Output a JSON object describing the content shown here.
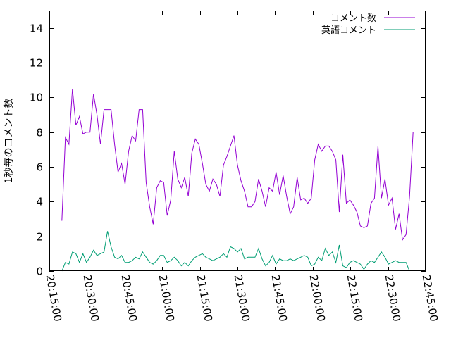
{
  "chart_data": {
    "type": "line",
    "title": "",
    "xlabel": "",
    "ylabel": "1秒毎のコメント数",
    "xlim": [
      "20:15:00",
      "22:45:00"
    ],
    "ylim": [
      0,
      15
    ],
    "yticks": [
      0,
      2,
      4,
      6,
      8,
      10,
      12,
      14
    ],
    "xticks": [
      "20:15:00",
      "20:30:00",
      "20:45:00",
      "21:00:00",
      "21:15:00",
      "21:30:00",
      "21:45:00",
      "22:00:00",
      "22:15:00",
      "22:30:00",
      "22:45:00"
    ],
    "legend_position": "top-right",
    "grid": false,
    "series": [
      {
        "name": "コメント数",
        "color": "#9400d3",
        "points": [
          [
            "20:20:00",
            2.9
          ],
          [
            "20:21:24",
            7.7
          ],
          [
            "20:22:48",
            7.3
          ],
          [
            "20:24:12",
            10.5
          ],
          [
            "20:25:36",
            8.4
          ],
          [
            "20:27:00",
            8.9
          ],
          [
            "20:28:24",
            7.9
          ],
          [
            "20:29:48",
            8.0
          ],
          [
            "20:31:12",
            8.0
          ],
          [
            "20:32:36",
            10.2
          ],
          [
            "20:34:00",
            9.0
          ],
          [
            "20:35:24",
            7.3
          ],
          [
            "20:36:48",
            9.3
          ],
          [
            "20:38:12",
            9.3
          ],
          [
            "20:39:36",
            9.3
          ],
          [
            "20:41:00",
            7.3
          ],
          [
            "20:42:24",
            5.7
          ],
          [
            "20:43:48",
            6.2
          ],
          [
            "20:45:12",
            5.0
          ],
          [
            "20:46:36",
            6.9
          ],
          [
            "20:48:00",
            7.8
          ],
          [
            "20:49:24",
            7.5
          ],
          [
            "20:50:48",
            9.3
          ],
          [
            "20:52:12",
            9.3
          ],
          [
            "20:53:36",
            5.1
          ],
          [
            "20:55:00",
            3.7
          ],
          [
            "20:56:24",
            2.7
          ],
          [
            "20:57:48",
            4.8
          ],
          [
            "20:59:12",
            5.2
          ],
          [
            "21:00:36",
            5.1
          ],
          [
            "21:02:00",
            3.2
          ],
          [
            "21:03:24",
            4.1
          ],
          [
            "21:04:48",
            6.9
          ],
          [
            "21:06:12",
            5.3
          ],
          [
            "21:07:36",
            4.8
          ],
          [
            "21:09:00",
            5.4
          ],
          [
            "21:10:24",
            4.3
          ],
          [
            "21:11:48",
            6.8
          ],
          [
            "21:13:12",
            7.6
          ],
          [
            "21:14:36",
            7.3
          ],
          [
            "21:16:00",
            6.2
          ],
          [
            "21:17:24",
            5.0
          ],
          [
            "21:18:48",
            4.6
          ],
          [
            "21:20:12",
            5.3
          ],
          [
            "21:21:36",
            5.0
          ],
          [
            "21:23:00",
            4.3
          ],
          [
            "21:24:24",
            6.1
          ],
          [
            "21:25:48",
            6.6
          ],
          [
            "21:27:12",
            7.2
          ],
          [
            "21:28:36",
            7.8
          ],
          [
            "21:30:00",
            6.1
          ],
          [
            "21:31:24",
            5.2
          ],
          [
            "21:32:48",
            4.6
          ],
          [
            "21:34:12",
            3.7
          ],
          [
            "21:35:36",
            3.7
          ],
          [
            "21:37:00",
            4.0
          ],
          [
            "21:38:24",
            5.3
          ],
          [
            "21:39:48",
            4.6
          ],
          [
            "21:41:12",
            3.7
          ],
          [
            "21:42:36",
            4.8
          ],
          [
            "21:44:00",
            4.6
          ],
          [
            "21:45:24",
            5.7
          ],
          [
            "21:46:48",
            4.4
          ],
          [
            "21:48:12",
            5.5
          ],
          [
            "21:49:36",
            4.3
          ],
          [
            "21:51:00",
            3.3
          ],
          [
            "21:52:24",
            3.7
          ],
          [
            "21:53:48",
            5.4
          ],
          [
            "21:55:12",
            4.1
          ],
          [
            "21:56:36",
            4.2
          ],
          [
            "21:58:00",
            3.9
          ],
          [
            "21:59:24",
            4.2
          ],
          [
            "22:00:48",
            6.4
          ],
          [
            "22:02:12",
            7.3
          ],
          [
            "22:03:36",
            6.9
          ],
          [
            "22:05:00",
            7.2
          ],
          [
            "22:06:24",
            7.2
          ],
          [
            "22:07:48",
            6.9
          ],
          [
            "22:09:12",
            6.4
          ],
          [
            "22:10:36",
            3.4
          ],
          [
            "22:12:00",
            6.7
          ],
          [
            "22:13:24",
            3.9
          ],
          [
            "22:14:48",
            4.1
          ],
          [
            "22:16:12",
            3.8
          ],
          [
            "22:17:36",
            3.4
          ],
          [
            "22:19:00",
            2.6
          ],
          [
            "22:20:24",
            2.5
          ],
          [
            "22:21:48",
            2.6
          ],
          [
            "22:23:12",
            3.9
          ],
          [
            "22:24:36",
            4.2
          ],
          [
            "22:26:00",
            7.2
          ],
          [
            "22:27:24",
            4.2
          ],
          [
            "22:28:48",
            5.3
          ],
          [
            "22:30:12",
            3.8
          ],
          [
            "22:31:36",
            4.2
          ],
          [
            "22:33:00",
            2.4
          ],
          [
            "22:34:24",
            3.3
          ],
          [
            "22:35:48",
            1.8
          ],
          [
            "22:37:12",
            2.1
          ],
          [
            "22:38:36",
            4.3
          ],
          [
            "22:40:00",
            8.0
          ]
        ]
      },
      {
        "name": "英語コメント",
        "color": "#009e73",
        "points": [
          [
            "20:20:00",
            0.0
          ],
          [
            "20:21:24",
            0.5
          ],
          [
            "20:22:48",
            0.4
          ],
          [
            "20:24:12",
            1.1
          ],
          [
            "20:25:36",
            1.0
          ],
          [
            "20:27:00",
            0.5
          ],
          [
            "20:28:24",
            1.0
          ],
          [
            "20:29:48",
            0.5
          ],
          [
            "20:31:12",
            0.8
          ],
          [
            "20:32:36",
            1.2
          ],
          [
            "20:34:00",
            0.9
          ],
          [
            "20:35:24",
            1.0
          ],
          [
            "20:36:48",
            1.1
          ],
          [
            "20:38:12",
            2.3
          ],
          [
            "20:39:36",
            1.4
          ],
          [
            "20:41:00",
            0.8
          ],
          [
            "20:42:24",
            0.7
          ],
          [
            "20:43:48",
            0.9
          ],
          [
            "20:45:12",
            0.5
          ],
          [
            "20:46:36",
            0.5
          ],
          [
            "20:48:00",
            0.6
          ],
          [
            "20:49:24",
            0.8
          ],
          [
            "20:50:48",
            0.7
          ],
          [
            "20:52:12",
            1.1
          ],
          [
            "20:53:36",
            0.8
          ],
          [
            "20:55:00",
            0.5
          ],
          [
            "20:56:24",
            0.4
          ],
          [
            "20:57:48",
            0.6
          ],
          [
            "20:59:12",
            0.9
          ],
          [
            "21:00:36",
            0.9
          ],
          [
            "21:02:00",
            0.5
          ],
          [
            "21:03:24",
            0.6
          ],
          [
            "21:04:48",
            0.8
          ],
          [
            "21:06:12",
            0.6
          ],
          [
            "21:07:36",
            0.3
          ],
          [
            "21:09:00",
            0.5
          ],
          [
            "21:10:24",
            0.3
          ],
          [
            "21:11:48",
            0.6
          ],
          [
            "21:13:12",
            0.8
          ],
          [
            "21:14:36",
            0.9
          ],
          [
            "21:16:00",
            1.0
          ],
          [
            "21:17:24",
            0.8
          ],
          [
            "21:18:48",
            0.7
          ],
          [
            "21:20:12",
            0.6
          ],
          [
            "21:21:36",
            0.7
          ],
          [
            "21:23:00",
            0.8
          ],
          [
            "21:24:24",
            1.0
          ],
          [
            "21:25:48",
            0.8
          ],
          [
            "21:27:12",
            1.4
          ],
          [
            "21:28:36",
            1.3
          ],
          [
            "21:30:00",
            1.1
          ],
          [
            "21:31:24",
            1.3
          ],
          [
            "21:32:48",
            0.7
          ],
          [
            "21:34:12",
            0.8
          ],
          [
            "21:35:36",
            0.8
          ],
          [
            "21:37:00",
            0.8
          ],
          [
            "21:38:24",
            1.3
          ],
          [
            "21:39:48",
            0.7
          ],
          [
            "21:41:12",
            0.3
          ],
          [
            "21:42:36",
            0.5
          ],
          [
            "21:44:00",
            0.9
          ],
          [
            "21:45:24",
            0.4
          ],
          [
            "21:46:48",
            0.7
          ],
          [
            "21:48:12",
            0.6
          ],
          [
            "21:49:36",
            0.6
          ],
          [
            "21:51:00",
            0.7
          ],
          [
            "21:52:24",
            0.6
          ],
          [
            "21:53:48",
            0.7
          ],
          [
            "21:55:12",
            0.8
          ],
          [
            "21:56:36",
            0.9
          ],
          [
            "21:58:00",
            0.8
          ],
          [
            "21:59:24",
            0.3
          ],
          [
            "22:00:48",
            0.4
          ],
          [
            "22:02:12",
            0.8
          ],
          [
            "22:03:36",
            0.6
          ],
          [
            "22:05:00",
            1.3
          ],
          [
            "22:06:24",
            0.9
          ],
          [
            "22:07:48",
            1.1
          ],
          [
            "22:09:12",
            0.5
          ],
          [
            "22:10:36",
            1.5
          ],
          [
            "22:12:00",
            0.3
          ],
          [
            "22:13:24",
            0.2
          ],
          [
            "22:14:48",
            0.5
          ],
          [
            "22:16:12",
            0.6
          ],
          [
            "22:17:36",
            0.5
          ],
          [
            "22:19:00",
            0.4
          ],
          [
            "22:20:24",
            0.1
          ],
          [
            "22:21:48",
            0.4
          ],
          [
            "22:23:12",
            0.6
          ],
          [
            "22:24:36",
            0.5
          ],
          [
            "22:26:00",
            0.8
          ],
          [
            "22:27:24",
            1.1
          ],
          [
            "22:28:48",
            0.8
          ],
          [
            "22:30:12",
            0.4
          ],
          [
            "22:31:36",
            0.5
          ],
          [
            "22:33:00",
            0.6
          ],
          [
            "22:34:24",
            0.5
          ],
          [
            "22:35:48",
            0.5
          ],
          [
            "22:37:12",
            0.5
          ],
          [
            "22:38:36",
            0.0
          ]
        ]
      }
    ]
  }
}
